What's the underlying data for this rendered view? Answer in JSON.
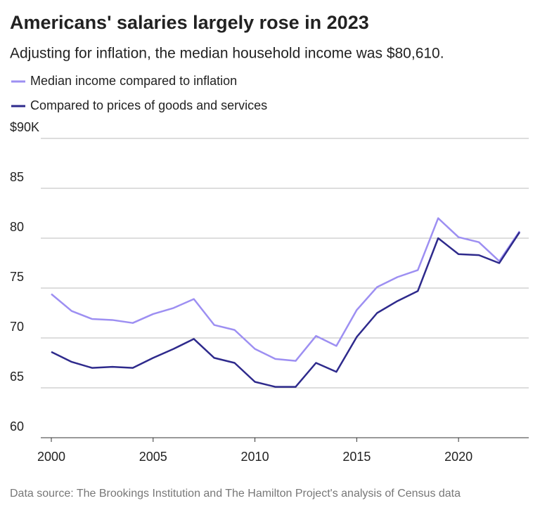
{
  "chart_data": {
    "type": "line",
    "title": "Americans' salaries largely rose in 2023",
    "subtitle": "Adjusting for inflation, the median household income was $80,610.",
    "source": "Data source: The Brookings Institution and The Hamilton Project's analysis of Census data",
    "x": [
      2000,
      2001,
      2002,
      2003,
      2004,
      2005,
      2006,
      2007,
      2008,
      2009,
      2010,
      2011,
      2012,
      2013,
      2014,
      2015,
      2016,
      2017,
      2018,
      2019,
      2020,
      2021,
      2022,
      2023
    ],
    "series": [
      {
        "name": "Median income compared to inflation",
        "color": "#9d8ff2",
        "values": [
          74.4,
          72.7,
          71.9,
          71.8,
          71.5,
          72.4,
          73.0,
          73.9,
          71.3,
          70.8,
          68.9,
          67.9,
          67.7,
          70.2,
          69.2,
          72.8,
          75.1,
          76.1,
          76.8,
          82.0,
          80.1,
          79.6,
          77.7,
          80.7
        ]
      },
      {
        "name": "Compared to prices of goods and services",
        "color": "#2e2a8c",
        "values": [
          68.6,
          67.6,
          67.0,
          67.1,
          67.0,
          68.0,
          68.9,
          69.9,
          68.0,
          67.5,
          65.6,
          65.1,
          65.1,
          67.5,
          66.6,
          70.1,
          72.5,
          73.7,
          74.7,
          80.0,
          78.4,
          78.3,
          77.5,
          80.6
        ]
      }
    ],
    "xlim": [
      2000,
      2023
    ],
    "xticks": [
      2000,
      2005,
      2010,
      2015,
      2020
    ],
    "ylim": [
      60,
      90
    ],
    "yticks": [
      60,
      65,
      70,
      75,
      80,
      85,
      {
        "value": 90,
        "label": "$90K"
      }
    ],
    "grid": true
  }
}
